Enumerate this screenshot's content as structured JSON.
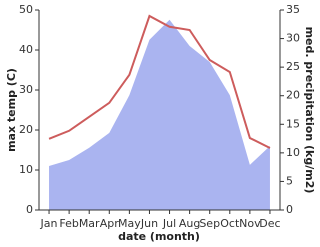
{
  "chart_data": {
    "type": "line_area",
    "x_label": "date (month)",
    "y_label": "max temp (C)",
    "y2_label": "med. precipitation (kg/m2)",
    "categories": [
      "Jan",
      "Feb",
      "Mar",
      "Apr",
      "May",
      "Jun",
      "Jul",
      "Aug",
      "Sep",
      "Oct",
      "Nov",
      "Dec"
    ],
    "ylim": [
      0,
      50
    ],
    "yticks": [
      0,
      10,
      20,
      30,
      40,
      50
    ],
    "y2lim": [
      0,
      35
    ],
    "y2ticks": [
      0,
      5,
      10,
      15,
      20,
      25,
      30,
      35
    ],
    "series": [
      {
        "name": "max temp (C)",
        "color": "#cd5c5c",
        "kind": "line",
        "values": [
          17.8,
          19.8,
          23.3,
          26.8,
          33.8,
          48.5,
          45.8,
          45,
          37.5,
          34.5,
          18,
          15.5
        ]
      },
      {
        "name": "med. precipitation (kg/m2)",
        "color": "#aab4f0",
        "kind": "area",
        "axis": "y2",
        "values": [
          7.7,
          8.75,
          10.9,
          13.5,
          20.1,
          29.8,
          33.3,
          28.7,
          25.9,
          20.1,
          7.9,
          11.2
        ]
      }
    ]
  }
}
